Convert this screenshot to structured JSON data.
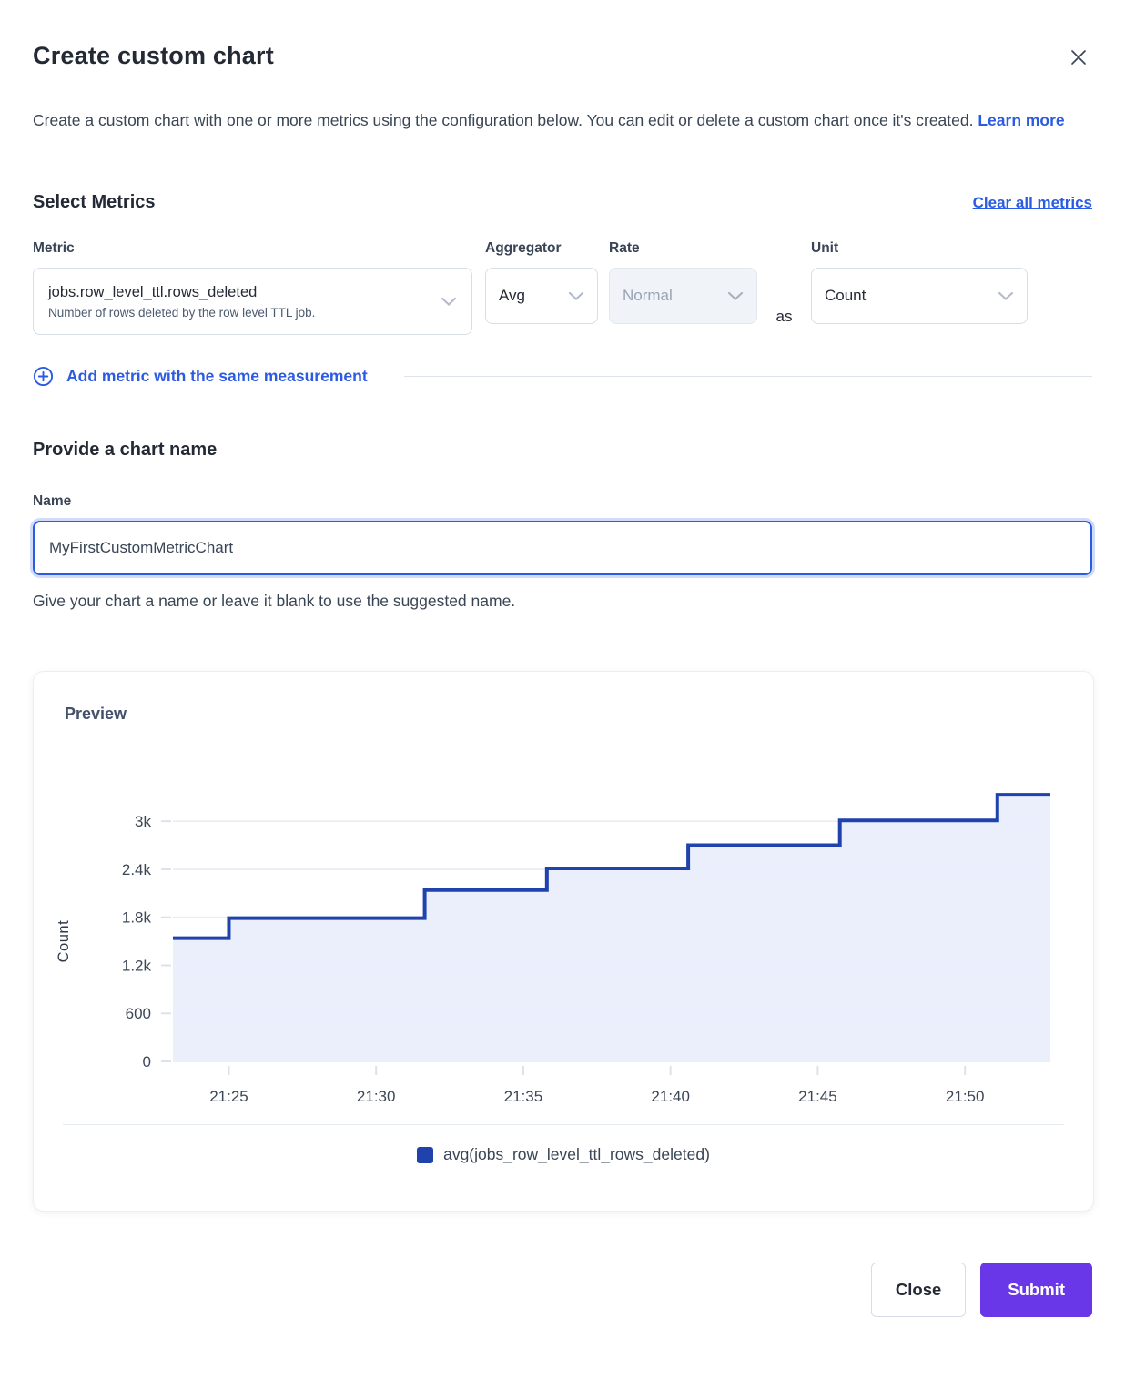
{
  "modal": {
    "title": "Create custom chart",
    "description": "Create a custom chart with one or more metrics using the configuration below. You can edit or delete a custom chart once it's created.",
    "learn_more": "Learn more"
  },
  "metrics_section": {
    "heading": "Select Metrics",
    "clear_all": "Clear all metrics",
    "metric_label": "Metric",
    "metric_value": "jobs.row_level_ttl.rows_deleted",
    "metric_description": "Number of rows deleted by the row level TTL job.",
    "aggregator_label": "Aggregator",
    "aggregator_value": "Avg",
    "rate_label": "Rate",
    "rate_value": "Normal",
    "rate_disabled": true,
    "as_label": "as",
    "unit_label": "Unit",
    "unit_value": "Count",
    "add_metric": "Add metric with the same measurement"
  },
  "name_section": {
    "heading": "Provide a chart name",
    "label": "Name",
    "value": "MyFirstCustomMetricChart",
    "helper": "Give your chart a name or leave it blank to use the suggested name."
  },
  "preview": {
    "heading": "Preview",
    "legend": "avg(jobs_row_level_ttl_rows_deleted)"
  },
  "footer": {
    "close": "Close",
    "submit": "Submit"
  },
  "icons": {
    "close": "x-mark",
    "select": "chevron-down",
    "add_metric": "plus-circle"
  },
  "colors": {
    "line": "#1f42ad",
    "fill": "#e9eefc",
    "legend_swatch": "#1f42ad",
    "link": "#2b5be2",
    "submit_bg": "#6936e8",
    "grid": "#e9ecf2",
    "tick": "#dde2ea",
    "axis_text": "#3c4656"
  },
  "chart_data": {
    "type": "area",
    "step": true,
    "title": "Preview",
    "ylabel": "Count",
    "xlabel": "",
    "grid": true,
    "legend_position": "bottom",
    "x_ticks": [
      "21:25",
      "21:30",
      "21:35",
      "21:40",
      "21:45",
      "21:50"
    ],
    "y_ticks": [
      0,
      600,
      1200,
      1800,
      2400,
      3000
    ],
    "y_tick_labels": [
      "0",
      "600",
      "1.2k",
      "1.8k",
      "2.4k",
      "3k"
    ],
    "ylim": [
      0,
      3400
    ],
    "x_range_minutes": [
      23.1,
      52.9
    ],
    "series": [
      {
        "name": "avg(jobs_row_level_ttl_rows_deleted)",
        "points": [
          [
            23.1,
            1540
          ],
          [
            25.0,
            1790
          ],
          [
            31.65,
            2140
          ],
          [
            35.8,
            2410
          ],
          [
            40.6,
            2700
          ],
          [
            45.75,
            3010
          ],
          [
            51.1,
            3330
          ]
        ]
      }
    ]
  }
}
